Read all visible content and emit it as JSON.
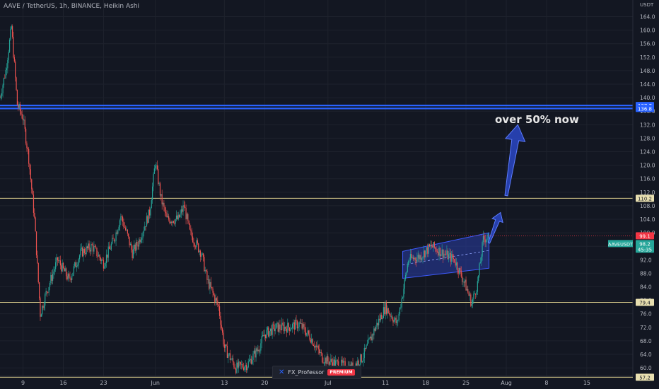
{
  "header": {
    "title": "AAVE / TetherUS, 1h, BINANCE, Heikin Ashi"
  },
  "annotation": {
    "text": "over 50% now"
  },
  "author": {
    "name": "FX_Professor",
    "badge": "PREMIUM"
  },
  "colors": {
    "background": "#131722",
    "grid": "#1e222d",
    "axis_text": "#b2b5be",
    "up": "#26a69a",
    "down": "#ef5350",
    "resistance": "#2962ff",
    "level": "#d6c98a",
    "channel": "#2a3ea8",
    "arrow": "#2a47c4",
    "price_tag": "#f23645",
    "symbol_tag": "#26a69a"
  },
  "chart_data": {
    "type": "candlestick",
    "price_unit": "USDT",
    "y_ticks": [
      60.0,
      64.0,
      68.0,
      72.0,
      76.0,
      80.0,
      84.0,
      88.0,
      92.0,
      96.0,
      100.0,
      104.0,
      108.0,
      112.0,
      116.0,
      120.0,
      124.0,
      128.0,
      132.0,
      136.0,
      140.0,
      144.0,
      148.0,
      152.0,
      156.0,
      160.0,
      164.0
    ],
    "ylim": [
      57.5,
      166.0
    ],
    "x_ticks": [
      "9",
      "16",
      "23",
      "Jun",
      "13",
      "20",
      "Jul",
      "11",
      "18",
      "25",
      "Aug",
      "8",
      "15"
    ],
    "x_tick_dates": [
      "2021-05-09",
      "2021-05-16",
      "2021-05-23",
      "2021-06-01",
      "2021-06-13",
      "2021-06-20",
      "2021-07-01",
      "2021-07-11",
      "2021-07-18",
      "2021-07-25",
      "2021-08-01",
      "2021-08-08",
      "2021-08-15"
    ],
    "xlim": [
      "2021-05-05",
      "2021-08-23"
    ],
    "horizontal_levels": [
      {
        "value": 137.7,
        "label": "137.7",
        "style": "resistance"
      },
      {
        "value": 136.8,
        "label": "136.8",
        "style": "resistance"
      },
      {
        "value": 110.2,
        "label": "110.2",
        "style": "level"
      },
      {
        "value": 79.4,
        "label": "79.4",
        "style": "level"
      },
      {
        "value": 57.2,
        "label": "57.2",
        "style": "level"
      }
    ],
    "last_price": {
      "value": 99.1,
      "label": "99.1"
    },
    "symbol_tag": {
      "name": "AAVEUSDT",
      "price": "98.2",
      "countdown": "45:35"
    },
    "channel": {
      "start": "2021-07-14",
      "end": "2021-07-29",
      "lower": [
        86.5,
        89.5
      ],
      "upper": [
        94.5,
        100.0
      ]
    },
    "arrows": [
      {
        "from": [
          "2021-07-29",
          97.0
        ],
        "to": [
          "2021-07-31",
          106.0
        ]
      },
      {
        "from": [
          "2021-08-01",
          111.0
        ],
        "to": [
          "2021-08-03",
          132.0
        ]
      }
    ],
    "price_path": [
      [
        "2021-05-05",
        140
      ],
      [
        "2021-05-06",
        148
      ],
      [
        "2021-05-07",
        161
      ],
      [
        "2021-05-08",
        138
      ],
      [
        "2021-05-09",
        134
      ],
      [
        "2021-05-10",
        122
      ],
      [
        "2021-05-11",
        104
      ],
      [
        "2021-05-12",
        76
      ],
      [
        "2021-05-13",
        82
      ],
      [
        "2021-05-15",
        92
      ],
      [
        "2021-05-17",
        86
      ],
      [
        "2021-05-19",
        94
      ],
      [
        "2021-05-21",
        96
      ],
      [
        "2021-05-23",
        91
      ],
      [
        "2021-05-25",
        99
      ],
      [
        "2021-05-26",
        105
      ],
      [
        "2021-05-27",
        100
      ],
      [
        "2021-05-28",
        94
      ],
      [
        "2021-05-29",
        97
      ],
      [
        "2021-05-31",
        106
      ],
      [
        "2021-06-01",
        121
      ],
      [
        "2021-06-02",
        110
      ],
      [
        "2021-06-03",
        104
      ],
      [
        "2021-06-05",
        104
      ],
      [
        "2021-06-06",
        108
      ],
      [
        "2021-06-07",
        100
      ],
      [
        "2021-06-09",
        94
      ],
      [
        "2021-06-10",
        86
      ],
      [
        "2021-06-12",
        78
      ],
      [
        "2021-06-13",
        66
      ],
      [
        "2021-06-15",
        60
      ],
      [
        "2021-06-17",
        61
      ],
      [
        "2021-06-19",
        66
      ],
      [
        "2021-06-20",
        70
      ],
      [
        "2021-06-22",
        72
      ],
      [
        "2021-06-24",
        72
      ],
      [
        "2021-06-26",
        73
      ],
      [
        "2021-06-28",
        69
      ],
      [
        "2021-06-30",
        63
      ],
      [
        "2021-07-01",
        62
      ],
      [
        "2021-07-03",
        61
      ],
      [
        "2021-07-05",
        60
      ],
      [
        "2021-07-07",
        63
      ],
      [
        "2021-07-09",
        71
      ],
      [
        "2021-07-11",
        78
      ],
      [
        "2021-07-13",
        73
      ],
      [
        "2021-07-14",
        82
      ],
      [
        "2021-07-15",
        92
      ],
      [
        "2021-07-17",
        93
      ],
      [
        "2021-07-19",
        96
      ],
      [
        "2021-07-21",
        94
      ],
      [
        "2021-07-23",
        92
      ],
      [
        "2021-07-24",
        88
      ],
      [
        "2021-07-25",
        84
      ],
      [
        "2021-07-26",
        79
      ],
      [
        "2021-07-27",
        85
      ],
      [
        "2021-07-28",
        98
      ],
      [
        "2021-07-29",
        99.1
      ]
    ]
  }
}
